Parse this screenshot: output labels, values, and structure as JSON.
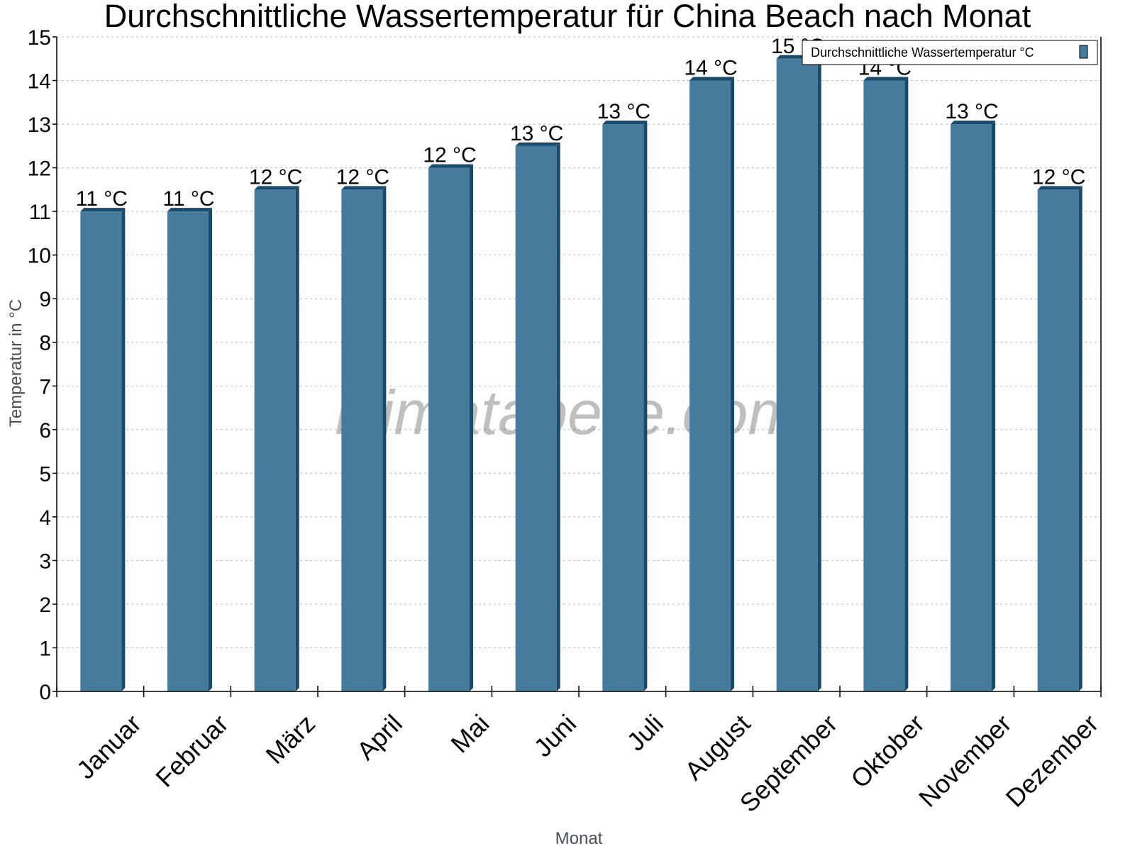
{
  "chart_data": {
    "type": "bar",
    "title": "Durchschnittliche Wassertemperatur für China Beach nach Monat",
    "xlabel": "Monat",
    "ylabel": "Temperatur in °C",
    "ylim": [
      0,
      15
    ],
    "yticks": [
      0,
      1,
      2,
      3,
      4,
      5,
      6,
      7,
      8,
      9,
      10,
      11,
      12,
      13,
      14,
      15
    ],
    "grid": true,
    "legend_position": "top-right",
    "categories": [
      "Januar",
      "Februar",
      "März",
      "April",
      "Mai",
      "Juni",
      "Juli",
      "August",
      "September",
      "Oktober",
      "November",
      "Dezember"
    ],
    "series": [
      {
        "name": "Durchschnittliche Wassertemperatur °C",
        "color": "#467b9c",
        "values": [
          11,
          11,
          11.5,
          11.5,
          12,
          12.5,
          13,
          14,
          14.5,
          14,
          13,
          11.5
        ],
        "labels": [
          "11 °C",
          "11 °C",
          "12 °C",
          "12 °C",
          "12 °C",
          "13 °C",
          "13 °C",
          "14 °C",
          "15 °C",
          "14 °C",
          "13 °C",
          "12 °C"
        ]
      }
    ]
  },
  "watermark": "klimatabelle.com",
  "colors": {
    "bar_front": "#467b9c",
    "bar_side": "#174a6b",
    "grid": "#bbbbbb",
    "axis": "#000000"
  }
}
